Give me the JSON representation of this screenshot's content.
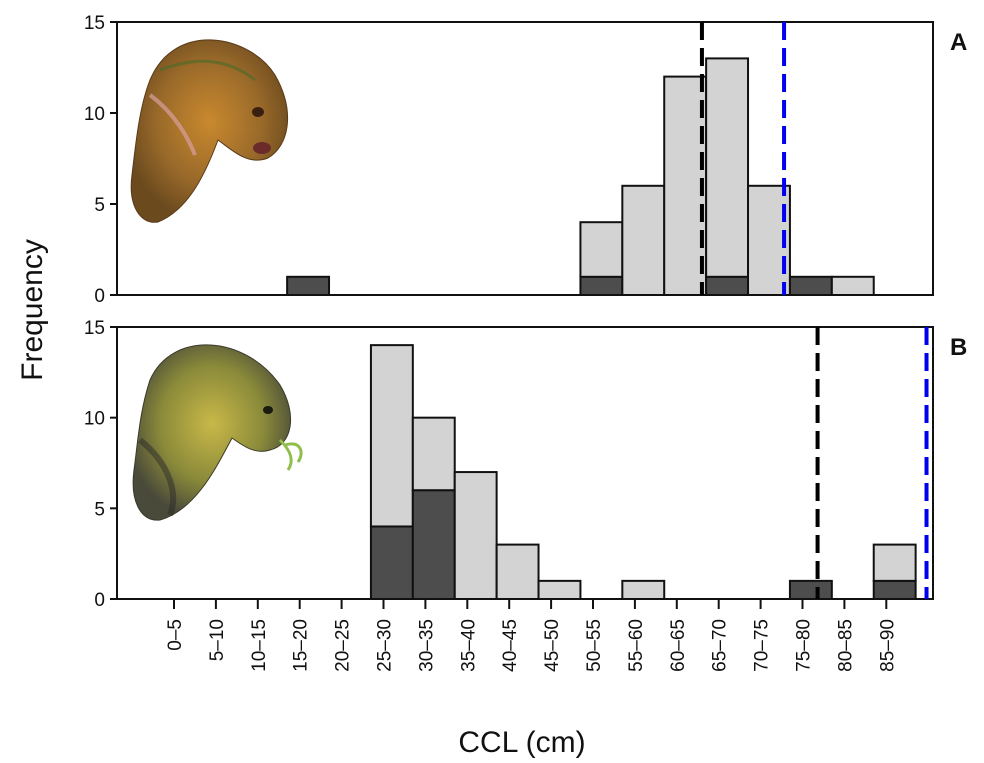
{
  "chart_data": {
    "type": "bar",
    "stacked": true,
    "xlabel": "CCL (cm)",
    "ylabel": "Frequency",
    "categories": [
      "0–5",
      "5–10",
      "10–15",
      "15–20",
      "20–25",
      "25–30",
      "30–35",
      "35–40",
      "40–45",
      "45–50",
      "50–55",
      "55–60",
      "60–65",
      "65–70",
      "70–75",
      "75–80",
      "80–85",
      "85–90"
    ],
    "ylim": [
      0,
      15
    ],
    "yticks": [
      0,
      5,
      10,
      15
    ],
    "colors": {
      "dark": "#4d4d4d",
      "light": "#d3d3d3",
      "black_line": "#000000",
      "blue_line": "#0000ee"
    },
    "panels": [
      {
        "label": "A",
        "illustration": "loggerhead-turtle-illustration",
        "bin_start": 16,
        "bin_width": 5,
        "series": [
          {
            "color_role": "dark",
            "values": [
              1,
              0,
              0,
              0,
              0,
              0,
              0,
              1,
              0,
              0,
              1,
              0,
              1,
              0
            ]
          },
          {
            "color_role": "light",
            "values": [
              0,
              0,
              0,
              0,
              0,
              0,
              0,
              3,
              6,
              12,
              12,
              6,
              0,
              1
            ]
          }
        ],
        "totals": [
          1,
          0,
          0,
          0,
          0,
          0,
          0,
          4,
          6,
          12,
          13,
          6,
          1,
          1
        ],
        "vlines": [
          {
            "x": 65.5,
            "color_role": "black_line"
          },
          {
            "x": 75.3,
            "color_role": "blue_line"
          }
        ]
      },
      {
        "label": "B",
        "illustration": "green-turtle-illustration",
        "bin_start": 26,
        "bin_width": 5,
        "series": [
          {
            "color_role": "dark",
            "values": [
              4,
              6,
              0,
              0,
              0,
              0,
              0,
              0,
              0,
              0,
              1,
              0,
              1
            ]
          },
          {
            "color_role": "light",
            "values": [
              10,
              4,
              7,
              3,
              1,
              0,
              1,
              0,
              0,
              0,
              0,
              0,
              2
            ]
          }
        ],
        "totals": [
          14,
          10,
          7,
          3,
          1,
          0,
          1,
          0,
          0,
          0,
          1,
          0,
          3
        ],
        "vlines": [
          {
            "x": 79.3,
            "color_role": "black_line"
          },
          {
            "x": 92.3,
            "color_role": "blue_line"
          }
        ]
      }
    ]
  }
}
